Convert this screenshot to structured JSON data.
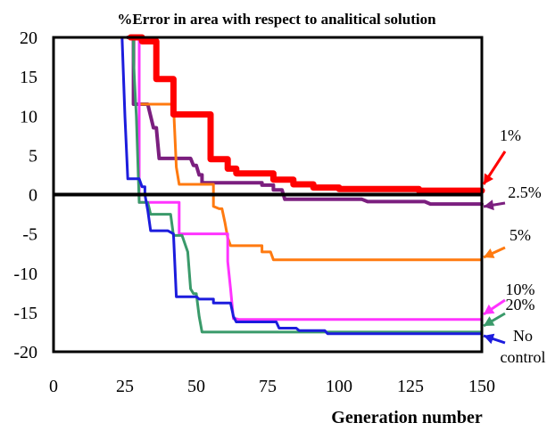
{
  "chart_data": {
    "type": "line",
    "title": "%Error in area with respect to analitical solution",
    "xlabel": "Generation number",
    "ylabel": "",
    "xlim": [
      0,
      150
    ],
    "ylim": [
      -20,
      20
    ],
    "x_ticks": [
      "0",
      "25",
      "50",
      "75",
      "100",
      "125",
      "150"
    ],
    "y_ticks": [
      "20",
      "15",
      "10",
      "5",
      "0",
      "-5",
      "-10",
      "-15",
      "-20"
    ],
    "grid": false,
    "series": [
      {
        "name": "1%",
        "color": "#ff0000",
        "points": [
          [
            27,
            20
          ],
          [
            31,
            20
          ],
          [
            31,
            19.5
          ],
          [
            36,
            19.5
          ],
          [
            36,
            14.7
          ],
          [
            42,
            14.7
          ],
          [
            42,
            10.2
          ],
          [
            55,
            10.2
          ],
          [
            55,
            4.5
          ],
          [
            61,
            4.5
          ],
          [
            61,
            3.3
          ],
          [
            64,
            3.3
          ],
          [
            64,
            2.7
          ],
          [
            77,
            2.7
          ],
          [
            77,
            1.9
          ],
          [
            84,
            1.9
          ],
          [
            84,
            1.3
          ],
          [
            91,
            1.3
          ],
          [
            91,
            0.9
          ],
          [
            100,
            0.9
          ],
          [
            100,
            0.7
          ],
          [
            128,
            0.7
          ],
          [
            128,
            0.5
          ],
          [
            150,
            0.5
          ]
        ]
      },
      {
        "name": "2.5%",
        "color": "#7b1f7f",
        "points": [
          [
            26,
            20
          ],
          [
            28,
            20
          ],
          [
            28,
            11.5
          ],
          [
            33,
            11.5
          ],
          [
            35,
            8.5
          ],
          [
            36,
            8.5
          ],
          [
            37,
            4.6
          ],
          [
            48,
            4.6
          ],
          [
            49,
            3.7
          ],
          [
            50,
            3.7
          ],
          [
            51,
            2.5
          ],
          [
            52,
            2.5
          ],
          [
            52,
            1.5
          ],
          [
            73,
            1.5
          ],
          [
            73,
            1.2
          ],
          [
            77,
            1.2
          ],
          [
            77,
            0.6
          ],
          [
            80,
            0.6
          ],
          [
            81,
            -0.6
          ],
          [
            108,
            -0.6
          ],
          [
            110,
            -0.9
          ],
          [
            130,
            -0.9
          ],
          [
            132,
            -1.2
          ],
          [
            150,
            -1.2
          ]
        ]
      },
      {
        "name": "5%",
        "color": "#ff7a10",
        "points": [
          [
            29,
            20
          ],
          [
            30,
            20
          ],
          [
            30,
            11.5
          ],
          [
            42,
            11.5
          ],
          [
            43,
            3.5
          ],
          [
            44,
            1.3
          ],
          [
            56,
            1.3
          ],
          [
            56,
            -1.5
          ],
          [
            58,
            -1.8
          ],
          [
            59,
            -1.8
          ],
          [
            60,
            -3.5
          ],
          [
            61,
            -5.5
          ],
          [
            62,
            -6.5
          ],
          [
            73,
            -6.5
          ],
          [
            73,
            -7.3
          ],
          [
            76,
            -7.3
          ],
          [
            77,
            -8.3
          ],
          [
            150,
            -8.3
          ]
        ]
      },
      {
        "name": "10%",
        "color": "#ff33ff",
        "points": [
          [
            29,
            20
          ],
          [
            30,
            20
          ],
          [
            30,
            -1.0
          ],
          [
            44,
            -1.0
          ],
          [
            44,
            -5.0
          ],
          [
            61,
            -5.0
          ],
          [
            61,
            -8.5
          ],
          [
            62,
            -12.0
          ],
          [
            63,
            -15.8
          ],
          [
            64,
            -15.8
          ],
          [
            65,
            -15.9
          ],
          [
            150,
            -15.9
          ]
        ]
      },
      {
        "name": "20%",
        "color": "#3a9a6a",
        "points": [
          [
            27,
            20
          ],
          [
            28,
            20
          ],
          [
            28,
            17
          ],
          [
            29,
            10
          ],
          [
            30,
            -1
          ],
          [
            33,
            -1
          ],
          [
            34,
            -2.5
          ],
          [
            41,
            -2.5
          ],
          [
            42,
            -5.2
          ],
          [
            45,
            -5.2
          ],
          [
            47,
            -7.3
          ],
          [
            48,
            -12
          ],
          [
            49,
            -12.6
          ],
          [
            50,
            -12.6
          ],
          [
            51,
            -15.5
          ],
          [
            52,
            -17.5
          ],
          [
            150,
            -17.5
          ]
        ]
      },
      {
        "name": "No control",
        "name_lines": [
          "No",
          "control"
        ],
        "color": "#1c1cdd",
        "points": [
          [
            24,
            20
          ],
          [
            25,
            10
          ],
          [
            26,
            2
          ],
          [
            30,
            2
          ],
          [
            31,
            1
          ],
          [
            32,
            1
          ],
          [
            32,
            0
          ],
          [
            33,
            -2
          ],
          [
            34,
            -4.6
          ],
          [
            40,
            -4.6
          ],
          [
            42,
            -5
          ],
          [
            43,
            -13
          ],
          [
            50,
            -13
          ],
          [
            51,
            -13.3
          ],
          [
            56,
            -13.3
          ],
          [
            56,
            -13.8
          ],
          [
            62,
            -13.8
          ],
          [
            63,
            -15.5
          ],
          [
            64,
            -16.2
          ],
          [
            78,
            -16.2
          ],
          [
            79,
            -17
          ],
          [
            85,
            -17
          ],
          [
            86,
            -17.3
          ],
          [
            95,
            -17.3
          ],
          [
            96,
            -17.7
          ],
          [
            150,
            -17.7
          ]
        ]
      }
    ],
    "legend_placement": "right, labels with arrows pointing to line ends"
  }
}
